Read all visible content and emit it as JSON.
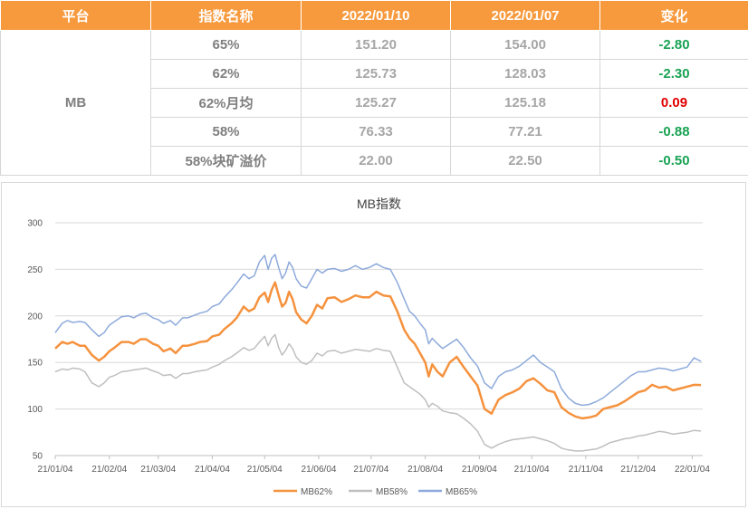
{
  "table": {
    "headers": [
      "平台",
      "指数名称",
      "2022/01/10",
      "2022/01/07",
      "变化"
    ],
    "platform": "MB",
    "rows": [
      {
        "name": "65%",
        "v1": "151.20",
        "v2": "154.00",
        "change": "-2.80",
        "sign": "neg"
      },
      {
        "name": "62%",
        "v1": "125.73",
        "v2": "128.03",
        "change": "-2.30",
        "sign": "neg"
      },
      {
        "name": "62%月均",
        "v1": "125.27",
        "v2": "125.18",
        "change": "0.09",
        "sign": "pos"
      },
      {
        "name": "58%",
        "v1": "76.33",
        "v2": "77.21",
        "change": "-0.88",
        "sign": "neg"
      },
      {
        "name": "58%块矿溢价",
        "v1": "22.00",
        "v2": "22.50",
        "change": "-0.50",
        "sign": "neg"
      }
    ],
    "colors": {
      "header_bg": "#f79a3e",
      "positive": "#e00000",
      "negative": "#1aa354"
    }
  },
  "chart_data": {
    "type": "line",
    "title": "MB指数",
    "xlabel": "",
    "ylabel": "",
    "ylim": [
      50,
      300
    ],
    "yticks": [
      50,
      100,
      150,
      200,
      250,
      300
    ],
    "x_tick_labels": [
      "21/01/04",
      "21/02/04",
      "21/03/04",
      "21/04/04",
      "21/05/04",
      "21/06/04",
      "21/07/04",
      "21/08/04",
      "21/09/04",
      "21/10/04",
      "21/11/04",
      "21/12/04",
      "22/01/04"
    ],
    "x_tick_index": [
      0,
      31,
      59,
      90,
      120,
      151,
      181,
      212,
      243,
      273,
      304,
      334,
      365
    ],
    "x_range_days": [
      0,
      371
    ],
    "grid": "horizontal",
    "legend_position": "bottom",
    "series": [
      {
        "name": "MB62%",
        "color": "#f5923e",
        "x": [
          0,
          4,
          7,
          10,
          14,
          17,
          21,
          25,
          28,
          31,
          34,
          38,
          42,
          45,
          49,
          52,
          56,
          59,
          62,
          66,
          69,
          73,
          76,
          80,
          83,
          87,
          90,
          94,
          97,
          101,
          104,
          108,
          111,
          114,
          117,
          120,
          122,
          124,
          126,
          128,
          130,
          132,
          134,
          136,
          138,
          141,
          144,
          147,
          150,
          153,
          156,
          160,
          164,
          168,
          172,
          176,
          180,
          184,
          188,
          192,
          196,
          200,
          203,
          206,
          209,
          212,
          214,
          216,
          219,
          222,
          226,
          230,
          234,
          238,
          242,
          246,
          250,
          254,
          258,
          262,
          266,
          270,
          274,
          278,
          282,
          286,
          290,
          294,
          298,
          302,
          306,
          310,
          314,
          318,
          322,
          326,
          330,
          334,
          338,
          342,
          346,
          350,
          354,
          358,
          362,
          366,
          370
        ],
        "values": [
          165,
          172,
          170,
          172,
          168,
          168,
          158,
          152,
          156,
          162,
          166,
          172,
          172,
          170,
          175,
          175,
          170,
          168,
          162,
          165,
          160,
          168,
          168,
          170,
          172,
          173,
          178,
          180,
          186,
          192,
          198,
          210,
          205,
          208,
          220,
          225,
          215,
          228,
          236,
          222,
          210,
          214,
          226,
          218,
          204,
          196,
          192,
          200,
          212,
          208,
          219,
          220,
          215,
          218,
          222,
          220,
          220,
          226,
          222,
          221,
          205,
          185,
          176,
          170,
          160,
          150,
          135,
          148,
          140,
          135,
          150,
          156,
          145,
          135,
          125,
          100,
          95,
          110,
          115,
          118,
          122,
          130,
          133,
          127,
          120,
          118,
          102,
          96,
          92,
          90,
          91,
          93,
          100,
          102,
          104,
          108,
          113,
          118,
          120,
          126,
          123,
          124,
          120,
          122,
          124,
          126,
          125.73
        ]
      },
      {
        "name": "MB58%",
        "color": "#bfbfbf",
        "x": [
          0,
          4,
          7,
          10,
          14,
          17,
          21,
          25,
          28,
          31,
          34,
          38,
          42,
          45,
          49,
          52,
          56,
          59,
          62,
          66,
          69,
          73,
          76,
          80,
          83,
          87,
          90,
          94,
          97,
          101,
          104,
          108,
          111,
          114,
          117,
          120,
          122,
          124,
          126,
          128,
          130,
          132,
          134,
          136,
          138,
          141,
          144,
          147,
          150,
          153,
          156,
          160,
          164,
          168,
          172,
          176,
          180,
          184,
          188,
          192,
          196,
          200,
          203,
          206,
          209,
          212,
          214,
          216,
          219,
          222,
          226,
          230,
          234,
          238,
          242,
          246,
          250,
          254,
          258,
          262,
          266,
          270,
          274,
          278,
          282,
          286,
          290,
          294,
          298,
          302,
          306,
          310,
          314,
          318,
          322,
          326,
          330,
          334,
          338,
          342,
          346,
          350,
          354,
          358,
          362,
          366,
          370
        ],
        "values": [
          140,
          143,
          142,
          144,
          143,
          140,
          128,
          124,
          128,
          134,
          136,
          140,
          141,
          142,
          143,
          144,
          141,
          139,
          136,
          137,
          133,
          138,
          138,
          140,
          141,
          142,
          145,
          148,
          152,
          156,
          160,
          166,
          163,
          165,
          172,
          178,
          168,
          176,
          180,
          166,
          158,
          163,
          170,
          165,
          156,
          150,
          148,
          152,
          160,
          157,
          162,
          163,
          160,
          162,
          164,
          163,
          162,
          165,
          163,
          162,
          145,
          128,
          124,
          120,
          116,
          110,
          102,
          106,
          103,
          98,
          96,
          95,
          90,
          84,
          76,
          62,
          58,
          62,
          65,
          67,
          68,
          69,
          70,
          68,
          66,
          63,
          58,
          56,
          55,
          55,
          56,
          57,
          60,
          64,
          66,
          68,
          69,
          71,
          72,
          74,
          76,
          75,
          73,
          74,
          75,
          77,
          76.33
        ]
      },
      {
        "name": "MB65%",
        "color": "#8eaadb",
        "x": [
          0,
          4,
          7,
          10,
          14,
          17,
          21,
          25,
          28,
          31,
          34,
          38,
          42,
          45,
          49,
          52,
          56,
          59,
          62,
          66,
          69,
          73,
          76,
          80,
          83,
          87,
          90,
          94,
          97,
          101,
          104,
          108,
          111,
          114,
          117,
          120,
          122,
          124,
          126,
          128,
          130,
          132,
          134,
          136,
          138,
          141,
          144,
          147,
          150,
          153,
          156,
          160,
          164,
          168,
          172,
          176,
          180,
          184,
          188,
          192,
          196,
          200,
          203,
          206,
          209,
          212,
          214,
          216,
          219,
          222,
          226,
          230,
          234,
          238,
          242,
          246,
          250,
          254,
          258,
          262,
          266,
          270,
          274,
          278,
          282,
          286,
          290,
          294,
          298,
          302,
          306,
          310,
          314,
          318,
          322,
          326,
          330,
          334,
          338,
          342,
          346,
          350,
          354,
          358,
          362,
          366,
          370
        ],
        "values": [
          182,
          192,
          195,
          193,
          194,
          193,
          185,
          178,
          182,
          190,
          194,
          199,
          200,
          198,
          202,
          203,
          198,
          196,
          192,
          195,
          190,
          198,
          198,
          201,
          203,
          205,
          210,
          213,
          220,
          228,
          235,
          245,
          240,
          243,
          258,
          265,
          250,
          262,
          266,
          252,
          240,
          246,
          258,
          252,
          240,
          232,
          230,
          240,
          250,
          246,
          250,
          251,
          248,
          250,
          254,
          250,
          252,
          256,
          252,
          250,
          236,
          218,
          205,
          200,
          192,
          185,
          170,
          176,
          170,
          165,
          170,
          175,
          166,
          155,
          146,
          128,
          122,
          135,
          140,
          142,
          146,
          152,
          158,
          150,
          145,
          140,
          122,
          112,
          106,
          104,
          105,
          108,
          112,
          118,
          124,
          130,
          136,
          140,
          140,
          142,
          144,
          143,
          141,
          143,
          145,
          155,
          151.2
        ]
      }
    ]
  }
}
